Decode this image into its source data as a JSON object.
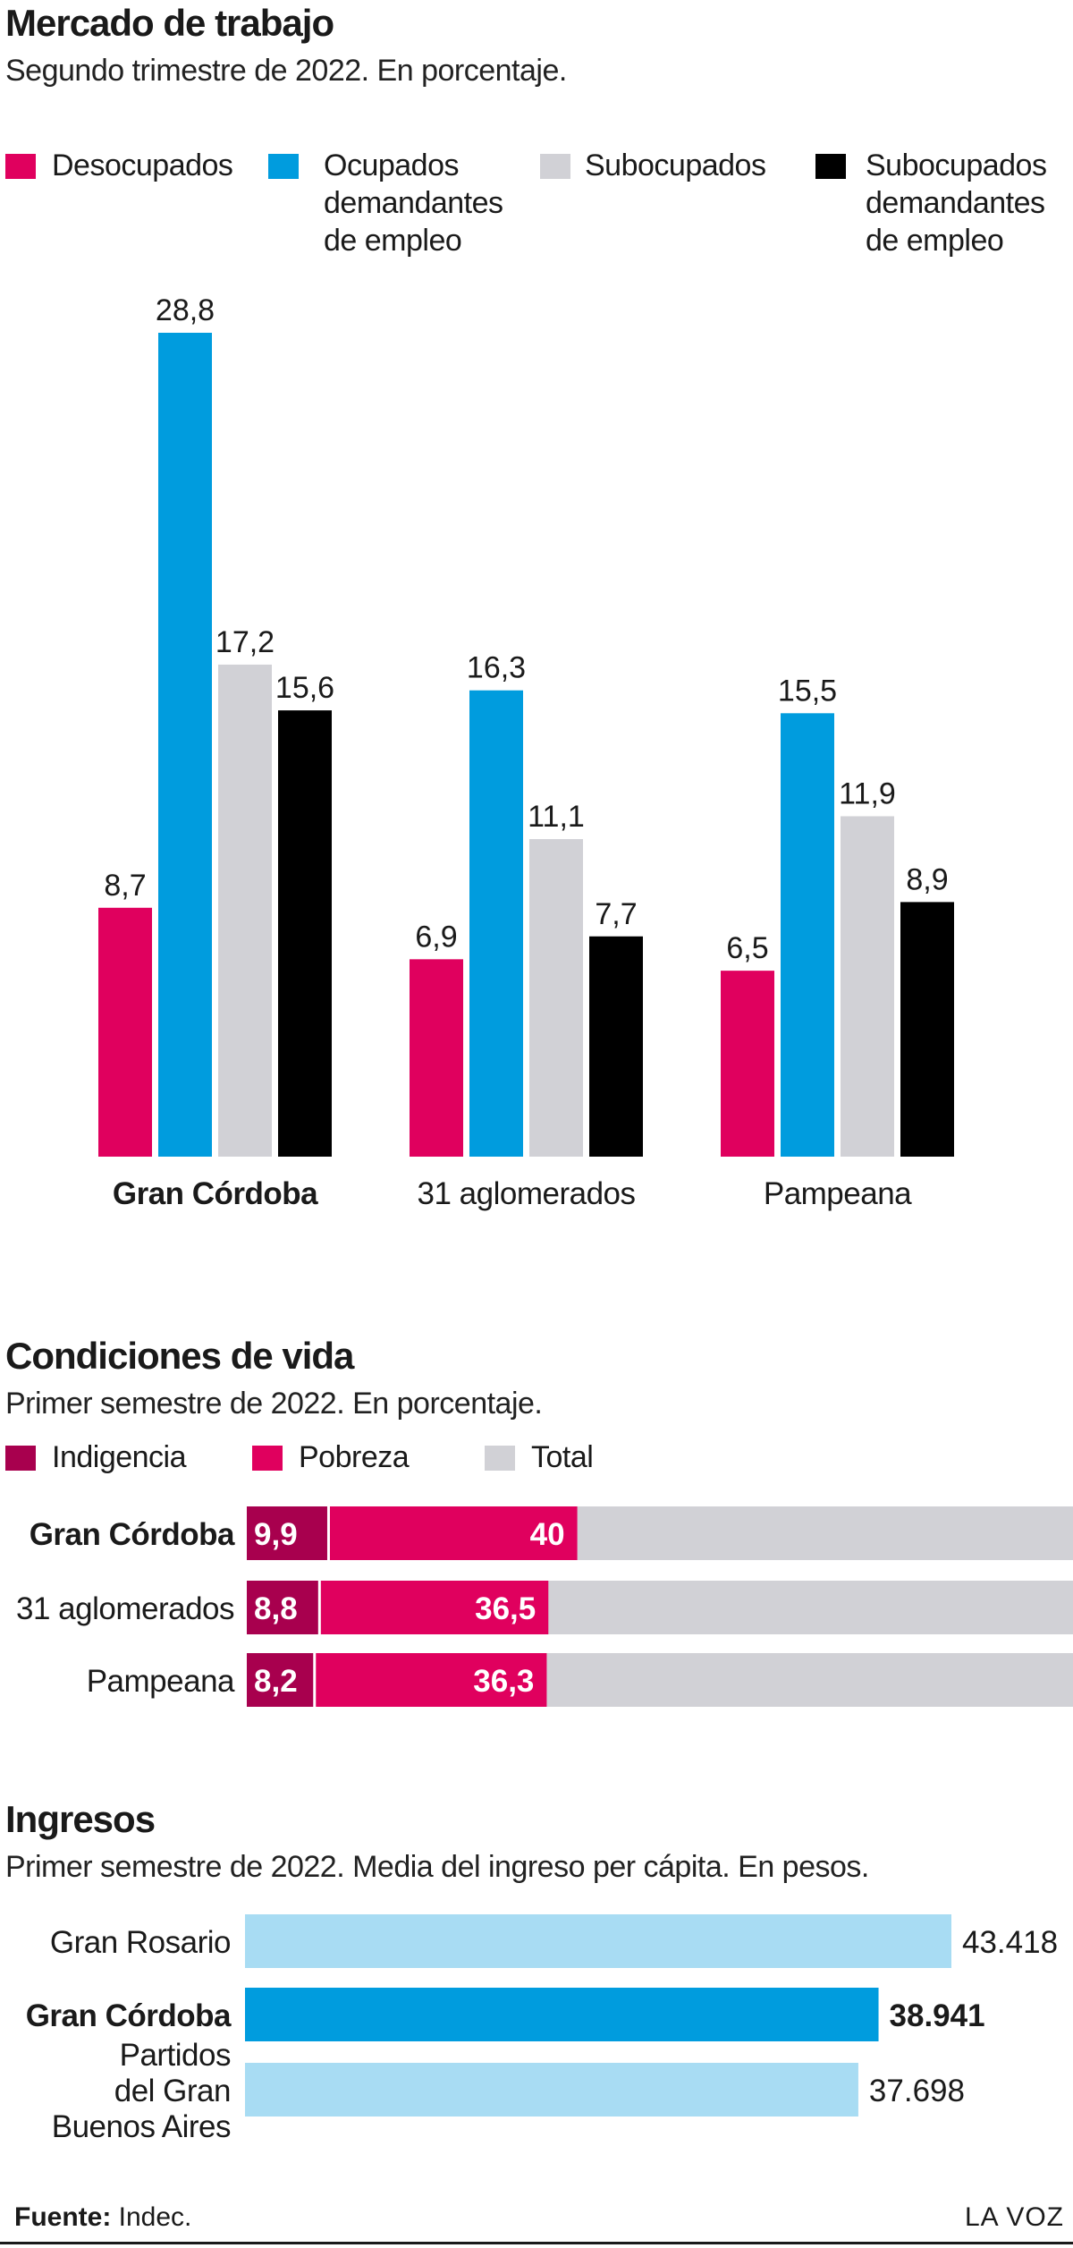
{
  "colors": {
    "desocupados": "#e0005e",
    "ocupados_demandantes": "#009cde",
    "subocupados": "#d1d1d6",
    "subocupados_demandantes": "#000000",
    "indigencia": "#a8004e",
    "pobreza": "#e0005e",
    "total": "#d1d1d6",
    "ingreso_light": "#a8dcf3",
    "ingreso_dark": "#009cde"
  },
  "chart_data": [
    {
      "type": "bar",
      "title": "Mercado de trabajo",
      "subtitle": "Segundo trimestre de 2022. En porcentaje.",
      "categories": [
        "Gran Córdoba",
        "31 aglomerados",
        "Pampeana"
      ],
      "highlight": "Gran Córdoba",
      "series": [
        {
          "name": "Desocupados",
          "values": [
            8.7,
            6.9,
            6.5
          ],
          "labels": [
            "8,7",
            "6,9",
            "6,5"
          ],
          "color": "#e0005e"
        },
        {
          "name": "Ocupados\ndemandantes\nde empleo",
          "values": [
            28.8,
            16.3,
            15.5
          ],
          "labels": [
            "28,8",
            "16,3",
            "15,5"
          ],
          "color": "#009cde"
        },
        {
          "name": "Subocupados",
          "values": [
            17.2,
            11.1,
            11.9
          ],
          "labels": [
            "17,2",
            "11,1",
            "11,9"
          ],
          "color": "#d1d1d6"
        },
        {
          "name": "Subocupados\ndemandantes\nde empleo",
          "values": [
            15.6,
            7.7,
            8.9
          ],
          "labels": [
            "15,6",
            "7,7",
            "8,9"
          ],
          "color": "#000000"
        }
      ],
      "ylim": [
        0,
        28.8
      ],
      "grid": false,
      "legend": "top"
    },
    {
      "type": "bar",
      "orientation": "horizontal",
      "stacked": true,
      "title": "Condiciones de vida",
      "subtitle": "Primer semestre de 2022. En porcentaje.",
      "categories": [
        "Gran Córdoba",
        "31 aglomerados",
        "Pampeana"
      ],
      "highlight": "Gran Córdoba",
      "series": [
        {
          "name": "Indigencia",
          "values": [
            9.9,
            8.8,
            8.2
          ],
          "labels": [
            "9,9",
            "8,8",
            "8,2"
          ],
          "color": "#a8004e"
        },
        {
          "name": "Pobreza",
          "values": [
            40,
            36.5,
            36.3
          ],
          "labels": [
            "40",
            "36,5",
            "36,3"
          ],
          "color": "#e0005e"
        },
        {
          "name": "Total",
          "values": [
            100,
            100,
            100
          ],
          "color": "#d1d1d6"
        }
      ],
      "xlim": [
        0,
        100
      ],
      "legend": "top-left"
    },
    {
      "type": "bar",
      "orientation": "horizontal",
      "title": "Ingresos",
      "subtitle": "Primer semestre de 2022. Media del ingreso per cápita. En pesos.",
      "categories": [
        "Gran Rosario",
        "Gran Córdoba",
        "Partidos\ndel Gran\nBuenos Aires"
      ],
      "highlight": "Gran Córdoba",
      "values": [
        43418,
        38941,
        37698
      ],
      "labels": [
        "43.418",
        "38.941",
        "37.698"
      ]
    }
  ],
  "footer": {
    "source_label": "Fuente:",
    "source_value": " Indec.",
    "brand": "LA VOZ"
  }
}
